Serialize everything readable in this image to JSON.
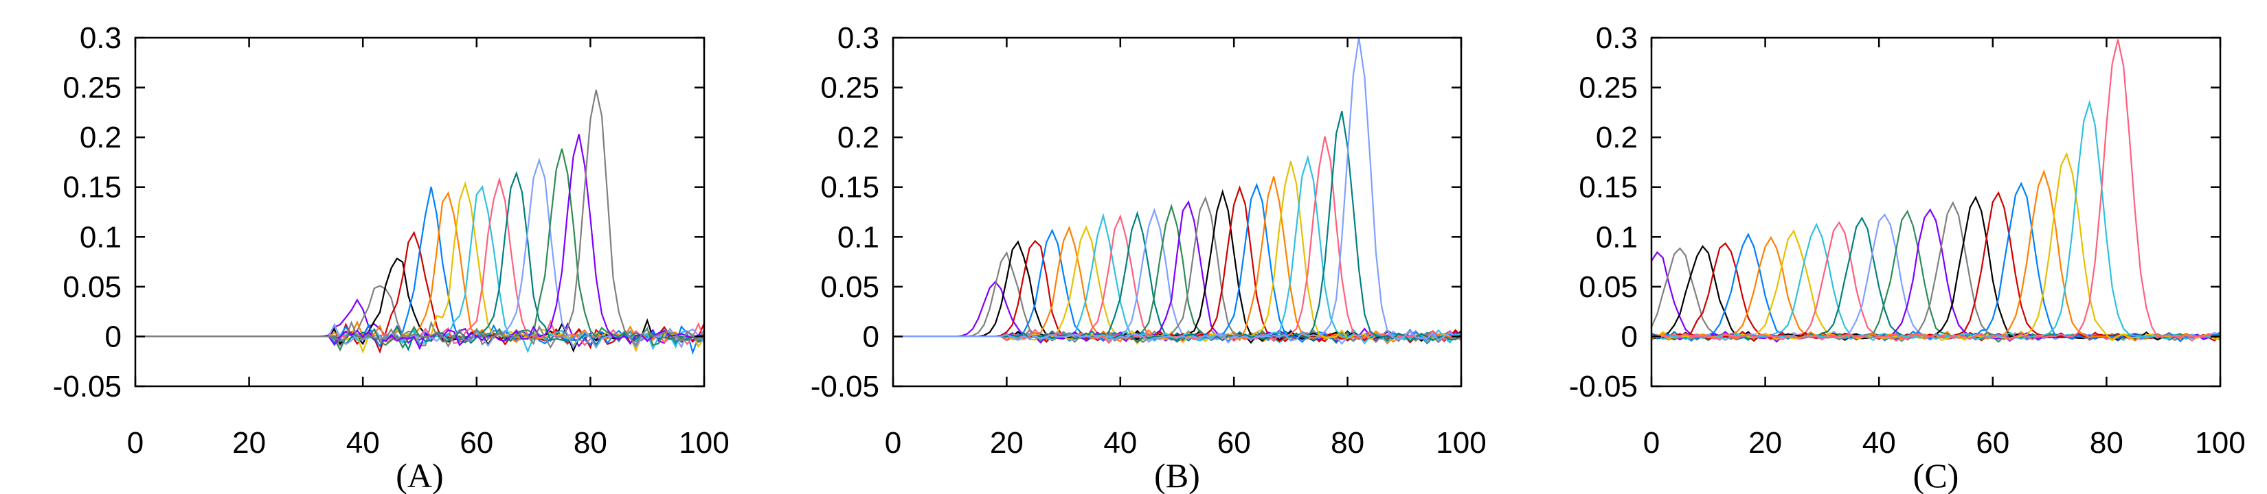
{
  "figure": {
    "panel_labels": [
      "(A)",
      "(B)",
      "(C)"
    ]
  },
  "series_colors": [
    "#7f00ff",
    "#808080",
    "#000000",
    "#d00000",
    "#0080ff",
    "#ff8000",
    "#e6c000",
    "#30c0e0",
    "#ff6080",
    "#008080",
    "#7fa0ff",
    "#2e8b57"
  ],
  "chart_data": [
    {
      "type": "line",
      "panel": "(A)",
      "xlim": [
        0,
        100
      ],
      "ylim": [
        -0.05,
        0.3
      ],
      "xticks": [
        0,
        20,
        40,
        60,
        80,
        100
      ],
      "yticks": [
        -0.05,
        0,
        0.05,
        0.1,
        0.15,
        0.2,
        0.25,
        0.3
      ],
      "ytick_labels": [
        "-0.05",
        "0",
        "0.05",
        "0.1",
        "0.15",
        "0.2",
        "0.25",
        "0.3"
      ],
      "xtick_labels": [
        "0",
        "20",
        "40",
        "60",
        "80",
        "100"
      ],
      "grid": false,
      "title": "",
      "xlabel": "",
      "ylabel": "",
      "peak_positions": [
        39,
        43,
        46,
        49,
        52,
        55,
        58,
        61,
        64,
        67,
        71,
        75,
        78,
        81
      ],
      "peak_heights": [
        0.03,
        0.055,
        0.08,
        0.105,
        0.14,
        0.145,
        0.15,
        0.155,
        0.155,
        0.165,
        0.18,
        0.19,
        0.205,
        0.245
      ],
      "peak_width": 2.0,
      "noise_start": 35,
      "noise_amplitude": 0.025
    },
    {
      "type": "line",
      "panel": "(B)",
      "xlim": [
        0,
        100
      ],
      "ylim": [
        -0.05,
        0.3
      ],
      "xticks": [
        0,
        20,
        40,
        60,
        80,
        100
      ],
      "yticks": [
        -0.05,
        0,
        0.05,
        0.1,
        0.15,
        0.2,
        0.25,
        0.3
      ],
      "ytick_labels": [
        "-0.05",
        "0",
        "0.05",
        "0.1",
        "0.15",
        "0.2",
        "0.25",
        "0.3"
      ],
      "xtick_labels": [
        "0",
        "20",
        "40",
        "60",
        "80",
        "100"
      ],
      "grid": false,
      "title": "",
      "xlabel": "",
      "ylabel": "",
      "peak_positions": [
        18,
        20,
        22,
        25,
        28,
        31,
        34,
        37,
        40,
        43,
        46,
        49,
        52,
        55,
        58,
        61,
        64,
        67,
        70,
        73,
        76,
        79,
        82
      ],
      "peak_heights": [
        0.055,
        0.085,
        0.095,
        0.1,
        0.105,
        0.11,
        0.11,
        0.115,
        0.12,
        0.12,
        0.125,
        0.13,
        0.135,
        0.14,
        0.145,
        0.15,
        0.155,
        0.16,
        0.175,
        0.18,
        0.2,
        0.225,
        0.3
      ],
      "peak_width": 2.0,
      "noise_start": 20,
      "noise_amplitude": 0.012
    },
    {
      "type": "line",
      "panel": "(C)",
      "xlim": [
        0,
        100
      ],
      "ylim": [
        -0.05,
        0.3
      ],
      "xticks": [
        0,
        20,
        40,
        60,
        80,
        100
      ],
      "yticks": [
        -0.05,
        0,
        0.05,
        0.1,
        0.15,
        0.2,
        0.25,
        0.3
      ],
      "ytick_labels": [
        "-0.05",
        "0",
        "0.05",
        "0.1",
        "0.15",
        "0.2",
        "0.25",
        "0.3"
      ],
      "xtick_labels": [
        "0",
        "20",
        "40",
        "60",
        "80",
        "100"
      ],
      "grid": false,
      "title": "",
      "xlabel": "",
      "ylabel": "",
      "peak_positions": [
        1,
        5,
        9,
        13,
        17,
        21,
        25,
        29,
        33,
        37,
        41,
        45,
        49,
        53,
        57,
        61,
        65,
        69,
        73,
        77,
        82
      ],
      "peak_heights": [
        0.085,
        0.09,
        0.09,
        0.095,
        0.1,
        0.1,
        0.105,
        0.11,
        0.115,
        0.12,
        0.125,
        0.125,
        0.13,
        0.135,
        0.14,
        0.145,
        0.155,
        0.165,
        0.185,
        0.235,
        0.3
      ],
      "peak_width": 2.4,
      "noise_start": 0,
      "noise_amplitude": 0.008
    }
  ]
}
